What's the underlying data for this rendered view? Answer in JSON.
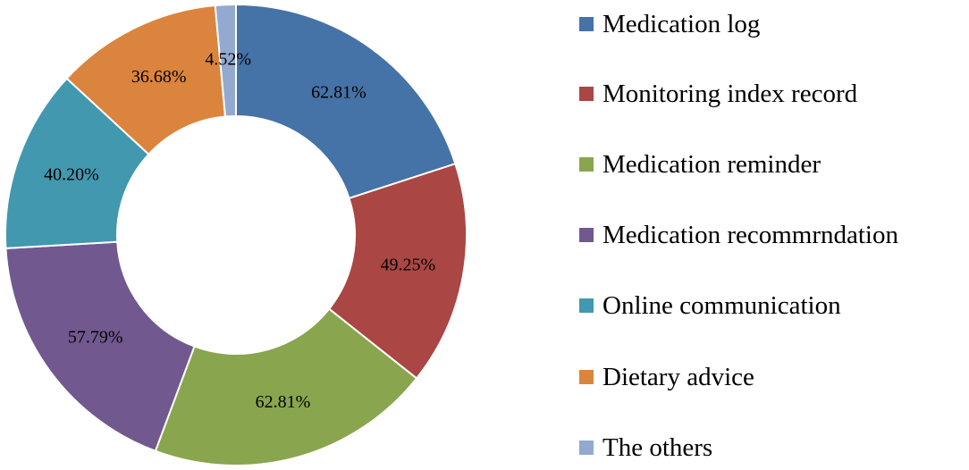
{
  "chart_data": {
    "type": "pie",
    "donut": true,
    "categories": [
      "Medication log",
      "Monitoring index record",
      "Medication reminder",
      "Medication recommrndation",
      "Online communication",
      "Dietary advice",
      "The others"
    ],
    "values": [
      62.81,
      49.25,
      62.81,
      57.79,
      40.2,
      36.68,
      4.52
    ],
    "labels": [
      "62.81%",
      "49.25%",
      "62.81%",
      "57.79%",
      "40.20%",
      "36.68%",
      "4.52%"
    ],
    "colors": [
      "#4572A7",
      "#AA4643",
      "#89A54E",
      "#71588F",
      "#4198AF",
      "#DB843D",
      "#93A9CF"
    ],
    "legend_position": "right",
    "title": ""
  }
}
